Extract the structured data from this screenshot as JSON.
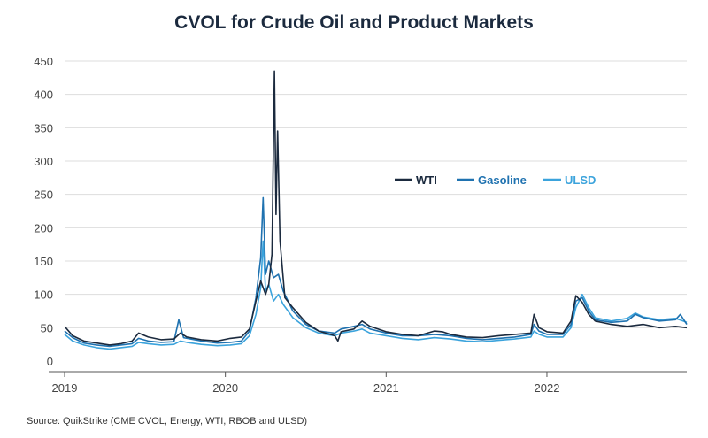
{
  "title": "CVOL for Crude Oil and Product Markets",
  "source": "Source: QuikStrike (CME CVOL, Energy, WTI, RBOB and ULSD)",
  "chart_data": {
    "type": "line",
    "title": "CVOL for Crude Oil and Product Markets",
    "xlabel": "",
    "ylabel": "",
    "ylim": [
      0,
      450
    ],
    "xlim": [
      2019.0,
      2022.87
    ],
    "yticks": [
      0,
      50,
      100,
      150,
      200,
      250,
      300,
      350,
      400,
      450
    ],
    "xticks": [
      {
        "value": 2019,
        "label": "2019"
      },
      {
        "value": 2020,
        "label": "2020"
      },
      {
        "value": 2021,
        "label": "2021"
      },
      {
        "value": 2022,
        "label": "2022"
      }
    ],
    "grid": true,
    "legend_position": "center-right",
    "series": [
      {
        "name": "WTI",
        "color": "#1b2a3e",
        "points": [
          [
            2019.0,
            52
          ],
          [
            2019.05,
            38
          ],
          [
            2019.12,
            30
          ],
          [
            2019.2,
            27
          ],
          [
            2019.28,
            24
          ],
          [
            2019.35,
            26
          ],
          [
            2019.42,
            30
          ],
          [
            2019.46,
            42
          ],
          [
            2019.52,
            36
          ],
          [
            2019.6,
            32
          ],
          [
            2019.68,
            33
          ],
          [
            2019.72,
            42
          ],
          [
            2019.76,
            36
          ],
          [
            2019.85,
            32
          ],
          [
            2019.95,
            30
          ],
          [
            2020.03,
            34
          ],
          [
            2020.1,
            36
          ],
          [
            2020.15,
            48
          ],
          [
            2020.19,
            90
          ],
          [
            2020.22,
            120
          ],
          [
            2020.25,
            100
          ],
          [
            2020.27,
            115
          ],
          [
            2020.29,
            160
          ],
          [
            2020.305,
            435
          ],
          [
            2020.315,
            220
          ],
          [
            2020.325,
            345
          ],
          [
            2020.34,
            180
          ],
          [
            2020.37,
            95
          ],
          [
            2020.42,
            80
          ],
          [
            2020.5,
            58
          ],
          [
            2020.58,
            45
          ],
          [
            2020.68,
            38
          ],
          [
            2020.7,
            30
          ],
          [
            2020.72,
            44
          ],
          [
            2020.8,
            48
          ],
          [
            2020.85,
            60
          ],
          [
            2020.9,
            52
          ],
          [
            2021.0,
            44
          ],
          [
            2021.1,
            40
          ],
          [
            2021.2,
            38
          ],
          [
            2021.3,
            45
          ],
          [
            2021.35,
            44
          ],
          [
            2021.4,
            40
          ],
          [
            2021.5,
            36
          ],
          [
            2021.6,
            35
          ],
          [
            2021.7,
            38
          ],
          [
            2021.8,
            40
          ],
          [
            2021.9,
            42
          ],
          [
            2021.92,
            70
          ],
          [
            2021.95,
            50
          ],
          [
            2022.0,
            44
          ],
          [
            2022.1,
            42
          ],
          [
            2022.15,
            60
          ],
          [
            2022.18,
            98
          ],
          [
            2022.22,
            88
          ],
          [
            2022.26,
            70
          ],
          [
            2022.3,
            60
          ],
          [
            2022.4,
            55
          ],
          [
            2022.5,
            52
          ],
          [
            2022.6,
            55
          ],
          [
            2022.7,
            50
          ],
          [
            2022.8,
            52
          ],
          [
            2022.87,
            50
          ]
        ]
      },
      {
        "name": "Gasoline",
        "color": "#1f72b0",
        "points": [
          [
            2019.0,
            45
          ],
          [
            2019.05,
            35
          ],
          [
            2019.12,
            27
          ],
          [
            2019.2,
            24
          ],
          [
            2019.28,
            22
          ],
          [
            2019.35,
            24
          ],
          [
            2019.42,
            26
          ],
          [
            2019.46,
            34
          ],
          [
            2019.52,
            30
          ],
          [
            2019.6,
            28
          ],
          [
            2019.68,
            29
          ],
          [
            2019.71,
            62
          ],
          [
            2019.74,
            35
          ],
          [
            2019.85,
            30
          ],
          [
            2019.95,
            27
          ],
          [
            2020.03,
            28
          ],
          [
            2020.1,
            30
          ],
          [
            2020.15,
            45
          ],
          [
            2020.19,
            95
          ],
          [
            2020.22,
            155
          ],
          [
            2020.235,
            245
          ],
          [
            2020.25,
            130
          ],
          [
            2020.27,
            150
          ],
          [
            2020.3,
            125
          ],
          [
            2020.33,
            130
          ],
          [
            2020.36,
            105
          ],
          [
            2020.42,
            75
          ],
          [
            2020.5,
            55
          ],
          [
            2020.58,
            45
          ],
          [
            2020.68,
            42
          ],
          [
            2020.72,
            48
          ],
          [
            2020.8,
            52
          ],
          [
            2020.85,
            55
          ],
          [
            2020.9,
            48
          ],
          [
            2021.0,
            42
          ],
          [
            2021.1,
            38
          ],
          [
            2021.2,
            38
          ],
          [
            2021.3,
            40
          ],
          [
            2021.4,
            38
          ],
          [
            2021.5,
            34
          ],
          [
            2021.6,
            32
          ],
          [
            2021.7,
            34
          ],
          [
            2021.8,
            36
          ],
          [
            2021.9,
            40
          ],
          [
            2021.92,
            55
          ],
          [
            2021.95,
            45
          ],
          [
            2022.0,
            40
          ],
          [
            2022.1,
            40
          ],
          [
            2022.15,
            55
          ],
          [
            2022.18,
            90
          ],
          [
            2022.22,
            95
          ],
          [
            2022.26,
            75
          ],
          [
            2022.3,
            62
          ],
          [
            2022.4,
            58
          ],
          [
            2022.5,
            60
          ],
          [
            2022.55,
            70
          ],
          [
            2022.6,
            65
          ],
          [
            2022.7,
            60
          ],
          [
            2022.8,
            62
          ],
          [
            2022.83,
            70
          ],
          [
            2022.87,
            55
          ]
        ]
      },
      {
        "name": "ULSD",
        "color": "#3ba3dc",
        "points": [
          [
            2019.0,
            40
          ],
          [
            2019.05,
            30
          ],
          [
            2019.12,
            24
          ],
          [
            2019.2,
            20
          ],
          [
            2019.28,
            18
          ],
          [
            2019.35,
            20
          ],
          [
            2019.42,
            22
          ],
          [
            2019.46,
            28
          ],
          [
            2019.52,
            26
          ],
          [
            2019.6,
            24
          ],
          [
            2019.68,
            25
          ],
          [
            2019.72,
            30
          ],
          [
            2019.76,
            28
          ],
          [
            2019.85,
            25
          ],
          [
            2019.95,
            23
          ],
          [
            2020.03,
            24
          ],
          [
            2020.1,
            26
          ],
          [
            2020.15,
            38
          ],
          [
            2020.19,
            70
          ],
          [
            2020.22,
            110
          ],
          [
            2020.235,
            180
          ],
          [
            2020.25,
            105
          ],
          [
            2020.27,
            115
          ],
          [
            2020.3,
            90
          ],
          [
            2020.33,
            100
          ],
          [
            2020.36,
            85
          ],
          [
            2020.42,
            65
          ],
          [
            2020.5,
            50
          ],
          [
            2020.58,
            42
          ],
          [
            2020.68,
            38
          ],
          [
            2020.72,
            42
          ],
          [
            2020.8,
            45
          ],
          [
            2020.85,
            48
          ],
          [
            2020.9,
            42
          ],
          [
            2021.0,
            38
          ],
          [
            2021.1,
            34
          ],
          [
            2021.2,
            32
          ],
          [
            2021.3,
            35
          ],
          [
            2021.4,
            33
          ],
          [
            2021.5,
            30
          ],
          [
            2021.6,
            29
          ],
          [
            2021.7,
            31
          ],
          [
            2021.8,
            33
          ],
          [
            2021.9,
            36
          ],
          [
            2021.92,
            45
          ],
          [
            2021.95,
            40
          ],
          [
            2022.0,
            36
          ],
          [
            2022.1,
            36
          ],
          [
            2022.15,
            50
          ],
          [
            2022.18,
            80
          ],
          [
            2022.22,
            100
          ],
          [
            2022.26,
            80
          ],
          [
            2022.3,
            65
          ],
          [
            2022.4,
            60
          ],
          [
            2022.5,
            64
          ],
          [
            2022.55,
            72
          ],
          [
            2022.6,
            66
          ],
          [
            2022.7,
            62
          ],
          [
            2022.8,
            64
          ],
          [
            2022.87,
            58
          ]
        ]
      }
    ]
  }
}
